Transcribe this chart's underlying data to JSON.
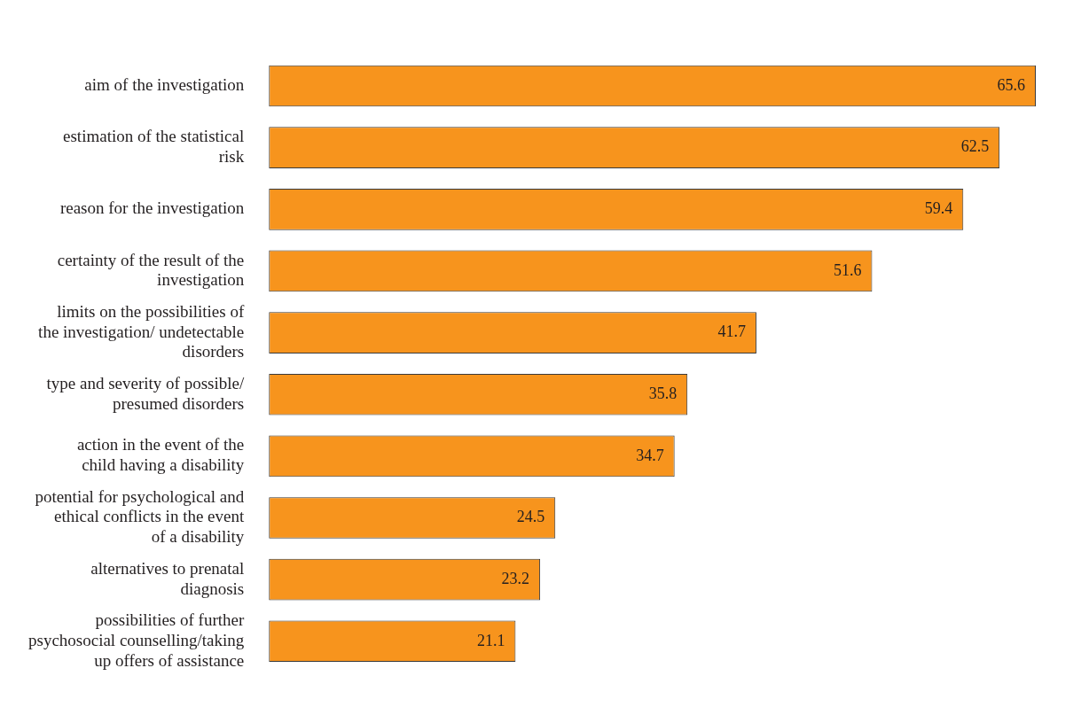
{
  "chart_data": {
    "type": "bar",
    "orientation": "horizontal",
    "data_labels": true,
    "color": "#f7941d",
    "categories": [
      "aim of the investigation",
      "estimation of the statistical risk",
      "reason for the investigation",
      "certainty of the result of the investigation",
      "limits on the possibilities of the investigation/ undetectable disorders",
      "type and severity of possible/ presumed disorders",
      "action in the event of the child having a disability",
      "potential for psychological and ethical conflicts in the event of a disability",
      "alternatives to prenatal diagnosis",
      "possibilities of further psychosocial counselling/taking up offers of assistance"
    ],
    "values": [
      65.6,
      62.5,
      59.4,
      51.6,
      41.7,
      35.8,
      34.7,
      24.5,
      23.2,
      21.1
    ]
  }
}
